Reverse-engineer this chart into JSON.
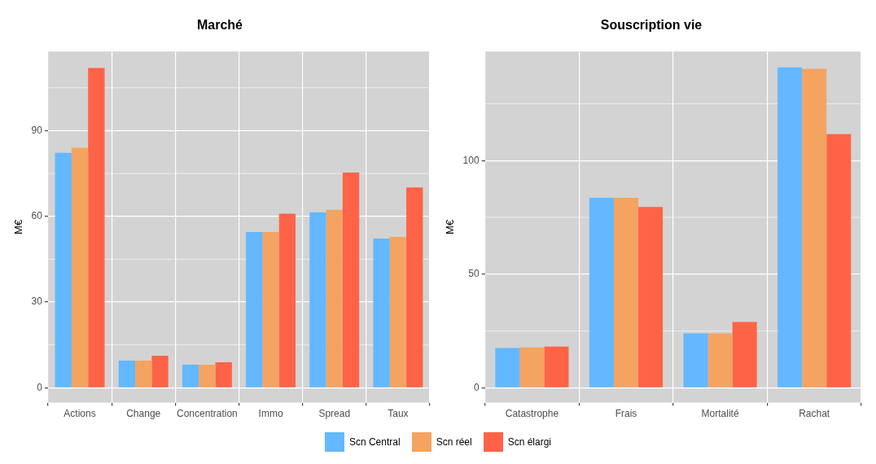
{
  "chart_data": [
    {
      "type": "bar",
      "title": "Marché",
      "ylabel": "M€",
      "categories": [
        "Actions",
        "Change",
        "Concentration",
        "Immo",
        "Spread",
        "Taux"
      ],
      "series": [
        {
          "name": "Scn Central",
          "color": "#63b8ff",
          "values": [
            82.2,
            9.5,
            8.1,
            54.5,
            61.4,
            52.2
          ]
        },
        {
          "name": "Scn réel",
          "color": "#f4a460",
          "values": [
            84,
            9.5,
            8.1,
            54.5,
            62.3,
            52.8
          ]
        },
        {
          "name": "Scn élargi",
          "color": "#ff6347",
          "values": [
            111.9,
            11.2,
            8.9,
            60.9,
            75.3,
            70.1
          ]
        }
      ],
      "ylim": [
        -5.2,
        117.7
      ],
      "yticks": [
        0,
        30,
        60,
        90
      ],
      "grid": true,
      "legend": "bottom"
    },
    {
      "type": "bar",
      "title": "Souscription vie",
      "ylabel": "M€",
      "categories": [
        "Catastrophe",
        "Frais",
        "Mortalité",
        "Rachat"
      ],
      "series": [
        {
          "name": "Scn Central",
          "color": "#63b8ff",
          "values": [
            17.5,
            83.6,
            24,
            141
          ]
        },
        {
          "name": "Scn réel",
          "color": "#f4a460",
          "values": [
            17.8,
            83.6,
            24,
            140.4
          ]
        },
        {
          "name": "Scn élargi",
          "color": "#ff6347",
          "values": [
            18.2,
            79.6,
            29,
            111.6
          ]
        }
      ],
      "ylim": [
        -6.5,
        148
      ],
      "yticks": [
        0,
        50,
        100
      ],
      "grid": true,
      "legend": "bottom"
    }
  ]
}
